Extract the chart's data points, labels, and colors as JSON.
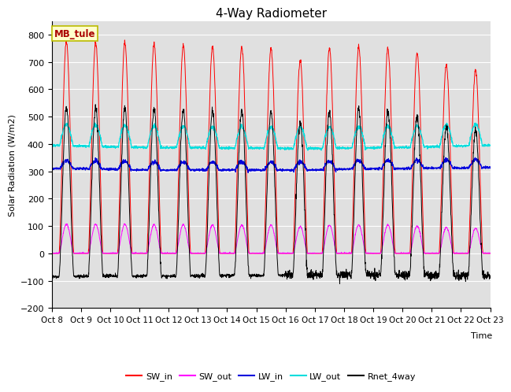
{
  "title": "4-Way Radiometer",
  "xlabel": "Time",
  "ylabel": "Solar Radiation (W/m2)",
  "ylim": [
    -200,
    850
  ],
  "yticks": [
    -200,
    -100,
    0,
    100,
    200,
    300,
    400,
    500,
    600,
    700,
    800
  ],
  "xtick_labels": [
    "Oct 8",
    "Oct 9",
    "Oct 10",
    "Oct 11",
    "Oct 12",
    "Oct 13",
    "Oct 14",
    "Oct 15",
    "Oct 16",
    "Oct 17",
    "Oct 18",
    "Oct 19",
    "Oct 20",
    "Oct 21",
    "Oct 22",
    "Oct 23"
  ],
  "station_label": "MB_tule",
  "legend_entries": [
    "SW_in",
    "SW_out",
    "LW_in",
    "LW_out",
    "Rnet_4way"
  ],
  "colors": {
    "SW_in": "#ff0000",
    "SW_out": "#ff00ff",
    "LW_in": "#0000dd",
    "LW_out": "#00dddd",
    "Rnet_4way": "#000000"
  },
  "bg_color": "#e0e0e0",
  "title_fontsize": 11,
  "n_days": 15,
  "pts_per_day": 144
}
